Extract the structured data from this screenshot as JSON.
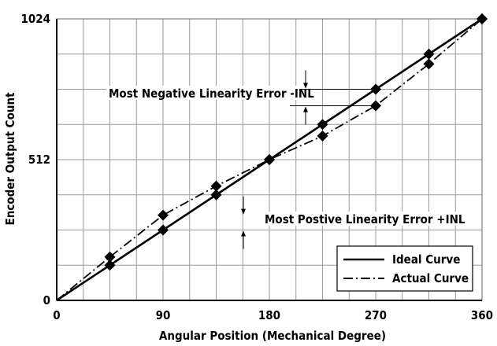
{
  "chart_data": {
    "type": "line",
    "xlabel": "Angular Position (Mechanical Degree)",
    "ylabel": "Encoder Output Count",
    "xlim": [
      0,
      360
    ],
    "ylim": [
      0,
      1024
    ],
    "xticks": [
      0,
      90,
      180,
      270,
      360
    ],
    "yticks": [
      0,
      512,
      1024
    ],
    "x_tick_labels": [
      "0",
      "90",
      "180",
      "270",
      "360"
    ],
    "y_tick_labels": [
      "0",
      "512",
      "1024"
    ],
    "grid": true,
    "grid_x_step": 22.5,
    "grid_y_step": 128,
    "legend_position": "bottom-right",
    "series": [
      {
        "name": "Ideal Curve",
        "style": "solid",
        "color": "#000000",
        "x": [
          0,
          45,
          90,
          135,
          180,
          225,
          270,
          315,
          360
        ],
        "y": [
          0,
          128,
          256,
          384,
          512,
          640,
          768,
          896,
          1024
        ]
      },
      {
        "name": "Actual Curve",
        "style": "dash-dot",
        "color": "#000000",
        "x": [
          0,
          45,
          90,
          135,
          180,
          225,
          270,
          315,
          360
        ],
        "y": [
          0,
          158,
          310,
          416,
          512,
          598,
          708,
          860,
          1024
        ]
      }
    ],
    "annotations": [
      {
        "text": "Most Negative Linearity Error -INL",
        "x": 270,
        "y_top": 768,
        "y_bottom": 708
      },
      {
        "text": "Most Postive Linearity Error +INL",
        "x": 90,
        "y_top": 310,
        "y_bottom": 256
      }
    ]
  }
}
